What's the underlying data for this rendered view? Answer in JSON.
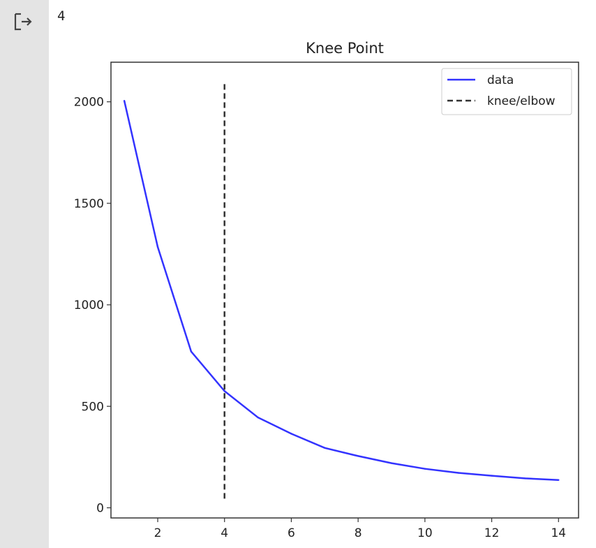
{
  "output": {
    "icon": "output-arrow-icon",
    "result_text": "4"
  },
  "chart_data": {
    "type": "line",
    "title": "Knee Point",
    "xlabel": "",
    "ylabel": "",
    "xlim": [
      0.6,
      14.6
    ],
    "ylim": [
      -50,
      2195
    ],
    "xticks": [
      2,
      4,
      6,
      8,
      10,
      12,
      14
    ],
    "yticks": [
      0,
      500,
      1000,
      1500,
      2000
    ],
    "grid": false,
    "legend_position": "upper right",
    "series": [
      {
        "name": "data",
        "style": "solid",
        "color": "#3333ff",
        "x": [
          1,
          2,
          3,
          4,
          5,
          6,
          7,
          8,
          9,
          10,
          11,
          12,
          13,
          14
        ],
        "y": [
          2005,
          1285,
          770,
          575,
          445,
          365,
          295,
          255,
          220,
          192,
          172,
          158,
          145,
          137
        ]
      },
      {
        "name": "knee/elbow",
        "style": "dashed",
        "color": "#333333",
        "x": [
          4,
          4
        ],
        "y": [
          45,
          2100
        ]
      }
    ]
  }
}
